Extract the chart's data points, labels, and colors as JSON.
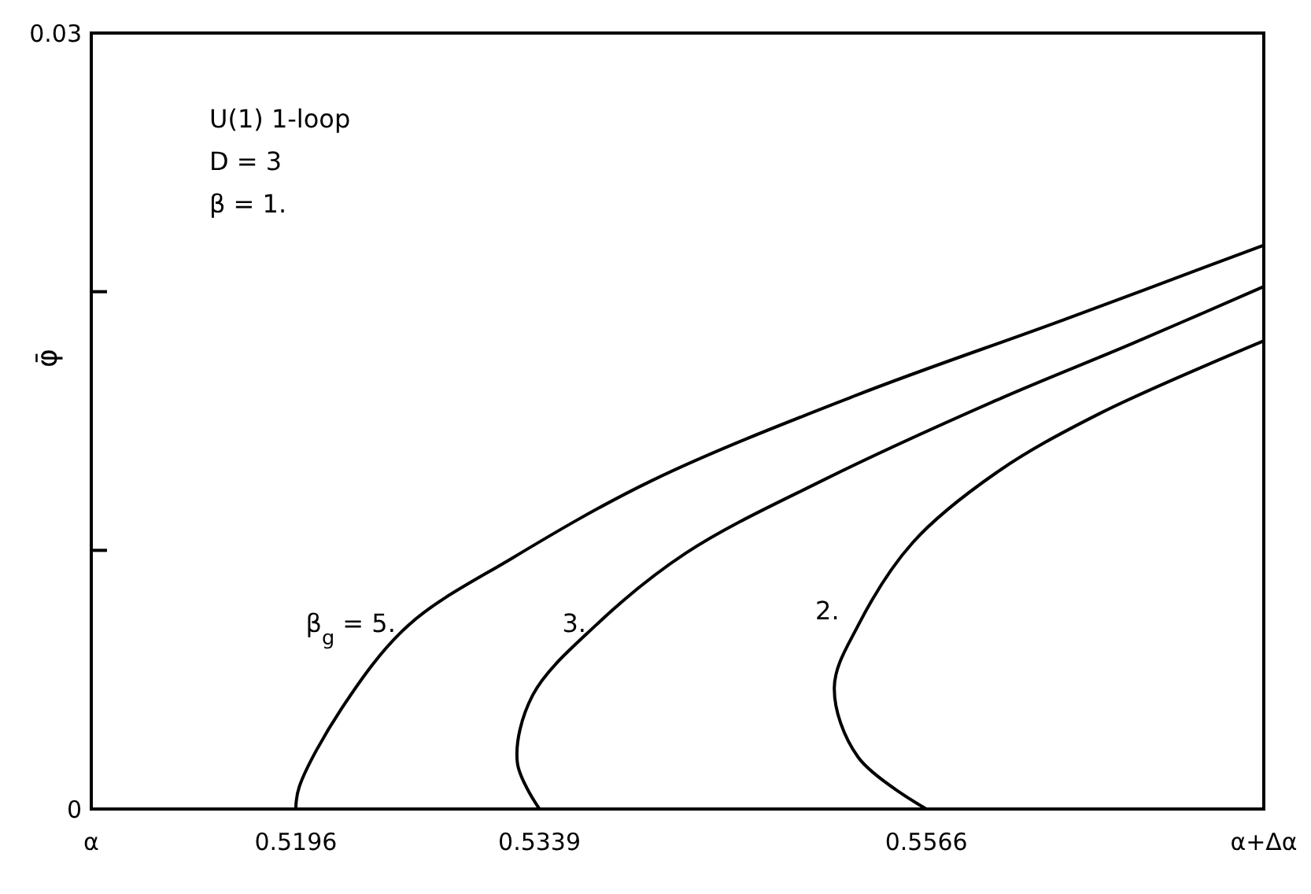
{
  "chart_data": {
    "type": "line",
    "ylabel": "φ̄",
    "xlim": [
      0.5076,
      0.5764
    ],
    "ylim": [
      0,
      0.03
    ],
    "xticks": [
      {
        "value": 0.5076,
        "label": "α"
      },
      0.5196,
      0.5339,
      0.5566,
      {
        "value": 0.5764,
        "label": "α+Δα"
      }
    ],
    "yticks": [
      0,
      {
        "value": 0.01,
        "label": null
      },
      {
        "value": 0.02,
        "label": null
      },
      0.03
    ],
    "annotations": [
      "U(1)  1-loop",
      "D = 3",
      "β = 1."
    ],
    "series": [
      {
        "name": "β$_{g}$ = 5.",
        "color": "#000000",
        "x": [
          0.5196,
          0.5198,
          0.5223,
          0.5262,
          0.5323,
          0.5405,
          0.5525,
          0.5646,
          0.5764
        ],
        "values": [
          0,
          0.00085,
          0.0039,
          0.0071,
          0.0097,
          0.0127,
          0.016,
          0.0189,
          0.0218
        ]
      },
      {
        "name": "3.",
        "color": "#000000",
        "x": [
          0.5339,
          0.5326,
          0.5335,
          0.5372,
          0.5425,
          0.5505,
          0.5607,
          0.5687,
          0.5764
        ],
        "values": [
          0,
          0.0018,
          0.0044,
          0.0071,
          0.0099,
          0.0127,
          0.0158,
          0.018,
          0.0202
        ]
      },
      {
        "name": "2.",
        "color": "#000000",
        "x": [
          0.5566,
          0.5526,
          0.5512,
          0.5526,
          0.5558,
          0.5607,
          0.5668,
          0.5764
        ],
        "values": [
          0,
          0.002,
          0.0047,
          0.0071,
          0.0103,
          0.013,
          0.0153,
          0.0181
        ]
      }
    ]
  }
}
